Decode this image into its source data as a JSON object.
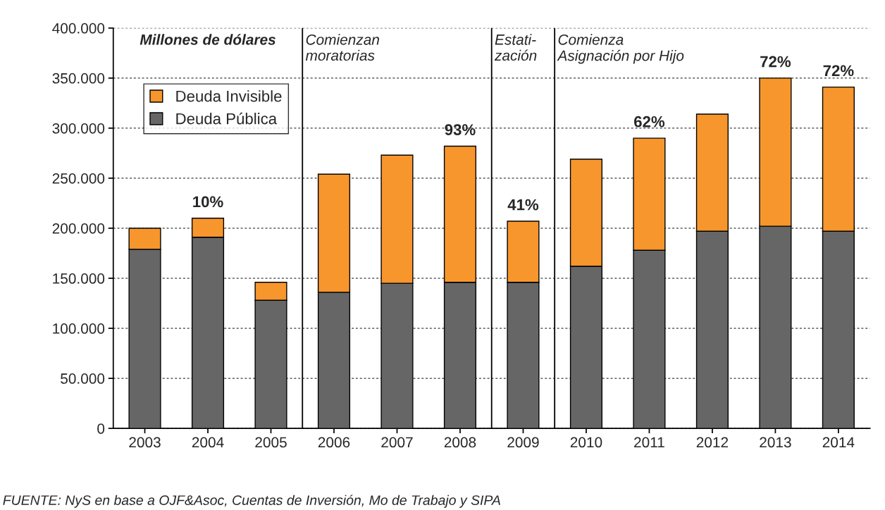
{
  "chart_data": {
    "type": "bar",
    "stacked": true,
    "categories": [
      "2003",
      "2004",
      "2005",
      "2006",
      "2007",
      "2008",
      "2009",
      "2010",
      "2011",
      "2012",
      "2013",
      "2014"
    ],
    "series": [
      {
        "name": "Deuda Pública",
        "color": "#666666",
        "values": [
          179000,
          191000,
          128000,
          136000,
          145000,
          146000,
          146000,
          162000,
          178000,
          197000,
          202000,
          197000
        ]
      },
      {
        "name": "Deuda Invisible",
        "color": "#f7962c",
        "values": [
          21000,
          19000,
          18000,
          118000,
          128000,
          136000,
          61000,
          107000,
          112000,
          117000,
          148000,
          144000
        ]
      }
    ],
    "ylim": [
      0,
      400000
    ],
    "yticks": [
      {
        "value": 0,
        "label": "0"
      },
      {
        "value": 50000,
        "label": "50.000"
      },
      {
        "value": 100000,
        "label": "100.000"
      },
      {
        "value": 150000,
        "label": "150.000"
      },
      {
        "value": 200000,
        "label": "200.000"
      },
      {
        "value": 250000,
        "label": "250.000"
      },
      {
        "value": 300000,
        "label": "300.000"
      },
      {
        "value": 350000,
        "label": "350.000"
      },
      {
        "value": 400000,
        "label": "400.000"
      }
    ],
    "grid": "y",
    "legend": "top left",
    "annotations": [
      "Millones de dólares",
      "Comienzan\nmoratorias",
      "Estati-\nzación",
      "Comienza\nAsignación por Hijo",
      {
        "text": "10%",
        "x": "2004",
        "y": 210000
      },
      {
        "text": "93%",
        "x": "2008",
        "y": 282000
      },
      {
        "text": "41%",
        "x": "2009",
        "y": 207000
      },
      {
        "text": "62%",
        "x": "2011",
        "y": 290000
      },
      {
        "text": "72%",
        "x": "2013",
        "y": 350000
      },
      {
        "text": "72%",
        "x": "2014",
        "y": 341000
      },
      "FUENTE: NyS en base a OJF&Asoc, Cuentas de Inversión, Mo de Trabajo y SIPA"
    ]
  }
}
